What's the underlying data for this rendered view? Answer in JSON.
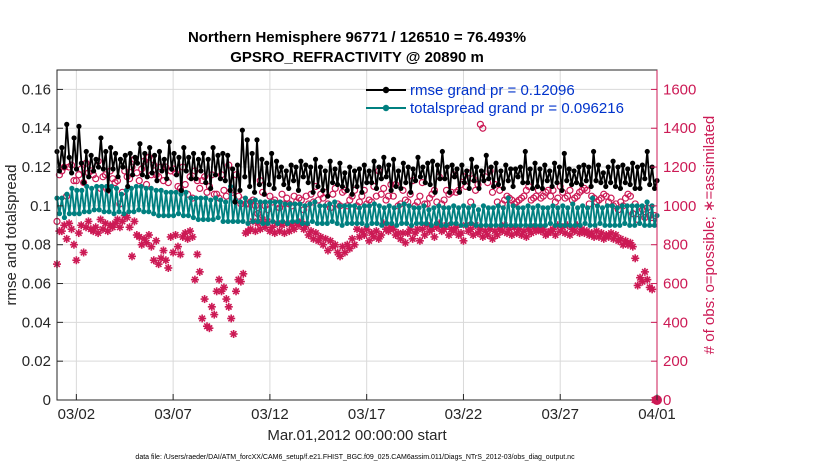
{
  "chart_data": {
    "type": "line",
    "title": [
      "Northern Hemisphere 96771 / 126510 = 76.493%",
      "GPSRO_REFRACTIVITY @ 20890 m"
    ],
    "xlabel": "Mar.01,2012 00:00:00 start",
    "ylabel_left": "rmse and totalspread",
    "ylabel_right": "# of obs: o=possible; ∗=assimilated",
    "footnote": "data file: /Users/raeder/DAI/ATM_forcXX/CAM6_setup/f.e21.FHIST_BGC.f09_025.CAM6assim.011/Diags_NTrS_2012-03/obs_diag_output.nc",
    "x_range_days": [
      0,
      31
    ],
    "x_ticks": [
      1,
      6,
      11,
      16,
      21,
      26,
      31
    ],
    "x_tick_labels": [
      "03/02",
      "03/07",
      "03/12",
      "03/17",
      "03/22",
      "03/27",
      "04/01"
    ],
    "ylim_left": [
      0,
      0.17
    ],
    "yticks_left": [
      "0",
      "0.02",
      "0.04",
      "0.06",
      "0.08",
      "0.1",
      "0.12",
      "0.14",
      "0.16"
    ],
    "ylim_right": [
      0,
      1700
    ],
    "yticks_right": [
      "0",
      "200",
      "400",
      "600",
      "800",
      "1000",
      "1200",
      "1400",
      "1600"
    ],
    "grid": true,
    "legend_position": "top-right",
    "colors": {
      "rmse": "#000000",
      "spread": "#008080",
      "obs": "#cc1a55",
      "grid": "#d9d9d9",
      "legend_text": "#0033cc"
    },
    "series": [
      {
        "name": "rmse grand pr = 0.12096",
        "axis": "left",
        "marker": "filled-circle",
        "values": [
          0.128,
          0.118,
          0.13,
          0.12,
          0.142,
          0.125,
          0.117,
          0.135,
          0.119,
          0.141,
          0.122,
          0.112,
          0.128,
          0.115,
          0.126,
          0.118,
          0.124,
          0.12,
          0.135,
          0.119,
          0.128,
          0.108,
          0.13,
          0.119,
          0.127,
          0.115,
          0.124,
          0.12,
          0.126,
          0.11,
          0.127,
          0.116,
          0.125,
          0.122,
          0.132,
          0.116,
          0.127,
          0.115,
          0.13,
          0.117,
          0.126,
          0.113,
          0.128,
          0.118,
          0.124,
          0.114,
          0.133,
          0.119,
          0.127,
          0.116,
          0.125,
          0.108,
          0.13,
          0.118,
          0.125,
          0.114,
          0.127,
          0.114,
          0.124,
          0.118,
          0.127,
          0.112,
          0.124,
          0.109,
          0.13,
          0.116,
          0.126,
          0.114,
          0.127,
          0.113,
          0.126,
          0.108,
          0.119,
          0.102,
          0.121,
          0.108,
          0.139,
          0.115,
          0.134,
          0.11,
          0.127,
          0.107,
          0.134,
          0.111,
          0.124,
          0.106,
          0.122,
          0.111,
          0.127,
          0.109,
          0.123,
          0.115,
          0.12,
          0.111,
          0.118,
          0.109,
          0.121,
          0.113,
          0.12,
          0.108,
          0.123,
          0.115,
          0.121,
          0.112,
          0.12,
          0.107,
          0.124,
          0.11,
          0.12,
          0.108,
          0.118,
          0.105,
          0.123,
          0.112,
          0.119,
          0.111,
          0.122,
          0.11,
          0.117,
          0.108,
          0.12,
          0.106,
          0.118,
          0.11,
          0.119,
          0.107,
          0.121,
          0.112,
          0.118,
          0.112,
          0.123,
          0.109,
          0.12,
          0.114,
          0.125,
          0.115,
          0.121,
          0.108,
          0.124,
          0.11,
          0.118,
          0.109,
          0.122,
          0.112,
          0.12,
          0.107,
          0.119,
          0.113,
          0.125,
          0.115,
          0.12,
          0.112,
          0.122,
          0.111,
          0.123,
          0.107,
          0.121,
          0.114,
          0.128,
          0.114,
          0.12,
          0.107,
          0.121,
          0.115,
          0.119,
          0.107,
          0.121,
          0.112,
          0.118,
          0.109,
          0.124,
          0.113,
          0.12,
          0.109,
          0.118,
          0.113,
          0.126,
          0.114,
          0.12,
          0.11,
          0.122,
          0.111,
          0.118,
          0.109,
          0.121,
          0.113,
          0.119,
          0.11,
          0.119,
          0.115,
          0.12,
          0.112,
          0.128,
          0.112,
          0.119,
          0.109,
          0.122,
          0.11,
          0.119,
          0.109,
          0.121,
          0.113,
          0.118,
          0.11,
          0.122,
          0.112,
          0.12,
          0.108,
          0.127,
          0.113,
          0.119,
          0.111,
          0.118,
          0.112,
          0.12,
          0.111,
          0.121,
          0.113,
          0.12,
          0.11,
          0.128,
          0.113,
          0.121,
          0.112,
          0.117,
          0.11,
          0.12,
          0.112,
          0.123,
          0.11,
          0.12,
          0.109,
          0.121,
          0.112,
          0.119,
          0.111,
          0.122,
          0.109,
          0.12,
          0.109,
          0.121,
          0.114,
          0.128,
          0.111,
          0.12,
          0.109,
          0.113
        ]
      },
      {
        "name": "totalspread grand pr = 0.096216",
        "axis": "left",
        "marker": "filled-circle",
        "values": [
          0.104,
          0.096,
          0.104,
          0.094,
          0.106,
          0.096,
          0.109,
          0.096,
          0.108,
          0.096,
          0.108,
          0.097,
          0.11,
          0.097,
          0.109,
          0.098,
          0.11,
          0.098,
          0.11,
          0.097,
          0.11,
          0.097,
          0.11,
          0.096,
          0.109,
          0.097,
          0.106,
          0.096,
          0.108,
          0.097,
          0.109,
          0.097,
          0.11,
          0.098,
          0.11,
          0.097,
          0.109,
          0.097,
          0.109,
          0.096,
          0.108,
          0.095,
          0.108,
          0.095,
          0.107,
          0.095,
          0.107,
          0.095,
          0.107,
          0.096,
          0.106,
          0.095,
          0.107,
          0.095,
          0.104,
          0.094,
          0.104,
          0.093,
          0.104,
          0.093,
          0.104,
          0.093,
          0.103,
          0.093,
          0.104,
          0.094,
          0.103,
          0.092,
          0.102,
          0.092,
          0.11,
          0.092,
          0.103,
          0.092,
          0.102,
          0.092,
          0.104,
          0.091,
          0.102,
          0.092,
          0.103,
          0.092,
          0.102,
          0.091,
          0.102,
          0.091,
          0.102,
          0.092,
          0.102,
          0.091,
          0.102,
          0.092,
          0.101,
          0.091,
          0.101,
          0.092,
          0.101,
          0.092,
          0.101,
          0.091,
          0.1,
          0.091,
          0.101,
          0.092,
          0.102,
          0.091,
          0.1,
          0.091,
          0.1,
          0.091,
          0.101,
          0.092,
          0.102,
          0.091,
          0.1,
          0.09,
          0.1,
          0.091,
          0.1,
          0.091,
          0.1,
          0.091,
          0.099,
          0.091,
          0.1,
          0.09,
          0.1,
          0.091,
          0.101,
          0.091,
          0.1,
          0.09,
          0.099,
          0.091,
          0.1,
          0.091,
          0.099,
          0.09,
          0.1,
          0.091,
          0.101,
          0.091,
          0.1,
          0.09,
          0.099,
          0.091,
          0.099,
          0.091,
          0.1,
          0.091,
          0.098,
          0.09,
          0.099,
          0.091,
          0.1,
          0.09,
          0.099,
          0.09,
          0.099,
          0.091,
          0.1,
          0.091,
          0.099,
          0.09,
          0.1,
          0.09,
          0.099,
          0.091,
          0.1,
          0.09,
          0.098,
          0.09,
          0.1,
          0.09,
          0.099,
          0.09,
          0.099,
          0.09,
          0.1,
          0.09,
          0.099,
          0.09,
          0.104,
          0.09,
          0.1,
          0.09,
          0.099,
          0.09,
          0.099,
          0.09,
          0.1,
          0.09,
          0.099,
          0.09,
          0.1,
          0.09,
          0.099,
          0.09,
          0.099,
          0.091,
          0.1,
          0.09,
          0.099,
          0.09,
          0.1,
          0.09,
          0.099,
          0.09,
          0.101,
          0.09,
          0.099,
          0.09,
          0.1,
          0.091,
          0.099,
          0.09,
          0.104,
          0.09,
          0.1,
          0.091,
          0.099,
          0.09,
          0.1,
          0.09,
          0.1,
          0.09,
          0.099,
          0.09,
          0.1,
          0.091,
          0.1,
          0.09,
          0.1,
          0.09,
          0.1,
          0.091,
          0.1,
          0.09,
          0.102,
          0.09,
          0.1,
          0.09,
          0.095
        ]
      },
      {
        "name": "possible obs",
        "axis": "right",
        "marker": "open-circle",
        "values": [
          920,
          1160,
          1180,
          1200,
          1050,
          1200,
          1210,
          1130,
          1130,
          1160,
          1190,
          1120,
          1220,
          1170,
          1180,
          1160,
          1140,
          1230,
          1090,
          1150,
          1160,
          1080,
          1180,
          1140,
          1120,
          1130,
          1010,
          1070,
          1180,
          1150,
          1140,
          1200,
          1240,
          1170,
          1130,
          1190,
          1230,
          1110,
          1250,
          1160,
          1210,
          1160,
          1150,
          1200,
          1130,
          1200,
          1120,
          1180,
          1190,
          1170,
          1100,
          1090,
          1200,
          1110,
          1060,
          1150,
          1040,
          1180,
          1130,
          1090,
          1130,
          1150,
          1070,
          1100,
          1160,
          1060,
          1060,
          1040,
          1160,
          1080,
          1050,
          1210,
          1080,
          1040,
          1160,
          1050,
          1010,
          1030,
          1010,
          1010,
          1020,
          1030,
          1000,
          960,
          1130,
          1070,
          1000,
          980,
          1050,
          1020,
          1030,
          1010,
          990,
          1060,
          1010,
          1040,
          1010,
          1000,
          1050,
          1020,
          1040,
          1030,
          980,
          1050,
          1010,
          1060,
          1020,
          1100,
          1030,
          1060,
          1040,
          1070,
          1010,
          990,
          1060,
          1090,
          1010,
          1000,
          1070,
          1080,
          1000,
          1030,
          1050,
          1080,
          1000,
          1020,
          1050,
          1080,
          1010,
          1030,
          1020,
          1100,
          1050,
          1180,
          1060,
          1090,
          1030,
          1050,
          1110,
          1050,
          1110,
          1000,
          1010,
          1080,
          1030,
          1020,
          1060,
          1130,
          1000,
          1020,
          1050,
          1120,
          1010,
          1010,
          1040,
          1060,
          1080,
          1020,
          1150,
          1010,
          1030,
          1080,
          1060,
          1070,
          1160,
          1070,
          1080,
          1110,
          1150,
          1100,
          1170,
          1020,
          1140,
          1080,
          1110,
          1420,
          1400,
          1150,
          1120,
          1180,
          1070,
          1110,
          1020,
          1080,
          1010,
          1030,
          1050,
          1040,
          1030,
          1010,
          1020,
          1030,
          1040,
          1050,
          1080,
          1100,
          1030,
          1040,
          1050,
          1080,
          1040,
          1050,
          1070,
          1080,
          1050,
          1080,
          1020,
          1040,
          1100,
          1070,
          1040,
          1050,
          1080,
          1030,
          1040,
          1050,
          1070,
          1080,
          1090,
          1080,
          1010,
          1050,
          1040,
          1020,
          1030,
          1040,
          1060,
          1050,
          1020,
          1040,
          1000,
          1010,
          980,
          1020,
          1000,
          1040,
          1060,
          1050,
          960,
          1010,
          930,
          970,
          980,
          940,
          990,
          950,
          910,
          950,
          0
        ]
      },
      {
        "name": "assimilated obs",
        "axis": "right",
        "marker": "asterisk",
        "values": [
          700,
          870,
          870,
          900,
          830,
          910,
          880,
          800,
          720,
          860,
          900,
          760,
          890,
          920,
          880,
          870,
          890,
          860,
          930,
          880,
          910,
          870,
          900,
          890,
          910,
          930,
          890,
          920,
          950,
          940,
          890,
          740,
          920,
          850,
          840,
          800,
          830,
          810,
          850,
          790,
          720,
          820,
          700,
          730,
          770,
          720,
          680,
          840,
          760,
          850,
          790,
          750,
          840,
          860,
          830,
          870,
          840,
          620,
          750,
          660,
          420,
          520,
          380,
          370,
          480,
          440,
          560,
          620,
          560,
          580,
          520,
          480,
          420,
          340,
          560,
          620,
          610,
          650,
          860,
          870,
          880,
          920,
          870,
          910,
          880,
          930,
          890,
          920,
          870,
          890,
          860,
          910,
          870,
          900,
          860,
          910,
          870,
          900,
          880,
          910,
          900,
          920,
          880,
          900,
          850,
          870,
          830,
          860,
          820,
          840,
          800,
          830,
          770,
          820,
          790,
          800,
          760,
          740,
          790,
          760,
          800,
          780,
          830,
          800,
          880,
          840,
          870,
          850,
          880,
          820,
          860,
          840,
          870,
          830,
          850,
          910,
          880,
          870,
          890,
          880,
          850,
          860,
          830,
          860,
          810,
          860,
          880,
          830,
          860,
          880,
          820,
          880,
          850,
          900,
          870,
          880,
          840,
          890,
          910,
          870,
          880,
          900,
          850,
          880,
          870,
          890,
          850,
          860,
          820,
          900,
          870,
          880,
          850,
          900,
          860,
          880,
          840,
          870,
          850,
          880,
          830,
          870,
          850,
          880,
          870,
          900,
          860,
          880,
          850,
          890,
          860,
          880,
          850,
          870,
          840,
          880,
          860,
          890,
          870,
          880,
          870,
          880,
          850,
          860,
          870,
          880,
          850,
          900,
          870,
          890,
          860,
          900,
          850,
          880,
          870,
          900,
          860,
          880,
          860,
          870,
          850,
          860,
          840,
          870,
          840,
          860,
          830,
          850,
          840,
          860,
          830,
          850,
          820,
          830,
          800,
          820,
          800,
          810,
          790,
          730,
          590,
          630,
          610,
          660,
          620,
          580,
          570,
          0
        ]
      }
    ]
  }
}
